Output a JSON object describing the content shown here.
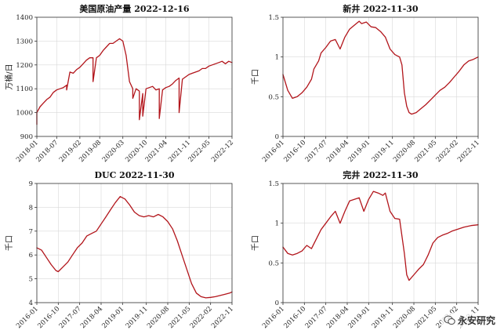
{
  "colors": {
    "series": "#b2151b",
    "grid": "#d9d9d9",
    "axis": "#333333"
  },
  "watermark": {
    "text": "永安研究",
    "icon": "wechat-icon"
  },
  "chart_data": [
    {
      "type": "line",
      "title": "美国原油产量 2022-12-16",
      "ylabel": "万桶/日",
      "xlabel": "",
      "ylim": [
        900,
        1400
      ],
      "yticks": [
        900,
        1000,
        1100,
        1200,
        1300,
        1400
      ],
      "xlim": [
        "2018-01",
        "2022-12"
      ],
      "xticks": [
        "2018-01",
        "2018-07",
        "2019-02",
        "2019-08",
        "2020-03",
        "2020-10",
        "2021-04",
        "2021-11",
        "2022-05",
        "2022-12"
      ],
      "grid": true,
      "series": [
        {
          "points": [
            [
              "2018-01",
              950
            ],
            [
              "2018-01",
              1000
            ],
            [
              "2018-02",
              1025
            ],
            [
              "2018-03",
              1040
            ],
            [
              "2018-04",
              1055
            ],
            [
              "2018-05",
              1065
            ],
            [
              "2018-06",
              1085
            ],
            [
              "2018-07",
              1095
            ],
            [
              "2018-08",
              1100
            ],
            [
              "2018-09",
              1105
            ],
            [
              "2018-10",
              1115
            ],
            [
              "2018-10",
              1095
            ],
            [
              "2018-11",
              1170
            ],
            [
              "2018-12",
              1165
            ],
            [
              "2019-01",
              1180
            ],
            [
              "2019-02",
              1190
            ],
            [
              "2019-03",
              1205
            ],
            [
              "2019-04",
              1220
            ],
            [
              "2019-05",
              1230
            ],
            [
              "2019-06",
              1230
            ],
            [
              "2019-06",
              1130
            ],
            [
              "2019-07",
              1230
            ],
            [
              "2019-08",
              1240
            ],
            [
              "2019-09",
              1260
            ],
            [
              "2019-10",
              1275
            ],
            [
              "2019-11",
              1290
            ],
            [
              "2019-12",
              1290
            ],
            [
              "2020-01",
              1300
            ],
            [
              "2020-02",
              1310
            ],
            [
              "2020-03",
              1300
            ],
            [
              "2020-04",
              1240
            ],
            [
              "2020-05",
              1130
            ],
            [
              "2020-06",
              1100
            ],
            [
              "2020-06",
              1060
            ],
            [
              "2020-07",
              1100
            ],
            [
              "2020-08",
              1090
            ],
            [
              "2020-08",
              970
            ],
            [
              "2020-09",
              1080
            ],
            [
              "2020-09",
              985
            ],
            [
              "2020-10",
              1100
            ],
            [
              "2020-11",
              1105
            ],
            [
              "2020-12",
              1110
            ],
            [
              "2021-01",
              1095
            ],
            [
              "2021-02",
              1100
            ],
            [
              "2021-02",
              975
            ],
            [
              "2021-03",
              1095
            ],
            [
              "2021-04",
              1105
            ],
            [
              "2021-05",
              1110
            ],
            [
              "2021-06",
              1120
            ],
            [
              "2021-07",
              1135
            ],
            [
              "2021-08",
              1145
            ],
            [
              "2021-08",
              1000
            ],
            [
              "2021-09",
              1140
            ],
            [
              "2021-10",
              1150
            ],
            [
              "2021-11",
              1160
            ],
            [
              "2021-12",
              1165
            ],
            [
              "2022-01",
              1170
            ],
            [
              "2022-02",
              1175
            ],
            [
              "2022-03",
              1185
            ],
            [
              "2022-04",
              1185
            ],
            [
              "2022-05",
              1195
            ],
            [
              "2022-06",
              1200
            ],
            [
              "2022-07",
              1205
            ],
            [
              "2022-08",
              1210
            ],
            [
              "2022-09",
              1215
            ],
            [
              "2022-10",
              1205
            ],
            [
              "2022-11",
              1215
            ],
            [
              "2022-12",
              1210
            ]
          ]
        }
      ]
    },
    {
      "type": "line",
      "title": "新井 2022-11-30",
      "ylabel": "千口",
      "xlabel": "",
      "ylim": [
        0,
        1.5
      ],
      "yticks": [
        0,
        0.5,
        1,
        1.5
      ],
      "xlim": [
        "2016-01",
        "2022-11"
      ],
      "xticks": [
        "2016-01",
        "2016-10",
        "2017-07",
        "2018-04",
        "2019-01",
        "2019-11",
        "2020-08",
        "2021-05",
        "2022-02",
        "2022-11"
      ],
      "grid": true,
      "series": [
        {
          "points": [
            [
              "2016-01",
              0.78
            ],
            [
              "2016-03",
              0.58
            ],
            [
              "2016-05",
              0.48
            ],
            [
              "2016-07",
              0.5
            ],
            [
              "2016-09",
              0.55
            ],
            [
              "2016-11",
              0.62
            ],
            [
              "2017-01",
              0.72
            ],
            [
              "2017-02",
              0.85
            ],
            [
              "2017-04",
              0.95
            ],
            [
              "2017-05",
              1.05
            ],
            [
              "2017-07",
              1.12
            ],
            [
              "2017-09",
              1.2
            ],
            [
              "2017-11",
              1.22
            ],
            [
              "2018-01",
              1.1
            ],
            [
              "2018-03",
              1.25
            ],
            [
              "2018-05",
              1.35
            ],
            [
              "2018-07",
              1.4
            ],
            [
              "2018-09",
              1.45
            ],
            [
              "2018-10",
              1.42
            ],
            [
              "2018-12",
              1.44
            ],
            [
              "2019-02",
              1.38
            ],
            [
              "2019-04",
              1.37
            ],
            [
              "2019-06",
              1.32
            ],
            [
              "2019-08",
              1.25
            ],
            [
              "2019-10",
              1.1
            ],
            [
              "2019-12",
              1.03
            ],
            [
              "2020-02",
              1.0
            ],
            [
              "2020-03",
              0.9
            ],
            [
              "2020-04",
              0.55
            ],
            [
              "2020-05",
              0.38
            ],
            [
              "2020-06",
              0.3
            ],
            [
              "2020-07",
              0.28
            ],
            [
              "2020-09",
              0.3
            ],
            [
              "2020-11",
              0.35
            ],
            [
              "2021-01",
              0.4
            ],
            [
              "2021-03",
              0.46
            ],
            [
              "2021-05",
              0.52
            ],
            [
              "2021-07",
              0.58
            ],
            [
              "2021-09",
              0.62
            ],
            [
              "2021-11",
              0.68
            ],
            [
              "2022-01",
              0.75
            ],
            [
              "2022-03",
              0.82
            ],
            [
              "2022-05",
              0.9
            ],
            [
              "2022-07",
              0.95
            ],
            [
              "2022-09",
              0.97
            ],
            [
              "2022-11",
              1.0
            ]
          ]
        }
      ]
    },
    {
      "type": "line",
      "title": "DUC 2022-11-30",
      "ylabel": "千口",
      "xlabel": "",
      "ylim": [
        4,
        9
      ],
      "yticks": [
        4,
        5,
        6,
        7,
        8,
        9
      ],
      "xlim": [
        "2016-01",
        "2022-11"
      ],
      "xticks": [
        "2016-01",
        "2016-10",
        "2017-07",
        "2018-04",
        "2019-01",
        "2019-11",
        "2020-08",
        "2021-05",
        "2022-02",
        "2022-11"
      ],
      "grid": true,
      "series": [
        {
          "points": [
            [
              "2016-01",
              6.3
            ],
            [
              "2016-03",
              6.2
            ],
            [
              "2016-05",
              5.9
            ],
            [
              "2016-07",
              5.6
            ],
            [
              "2016-09",
              5.35
            ],
            [
              "2016-10",
              5.3
            ],
            [
              "2016-12",
              5.5
            ],
            [
              "2017-02",
              5.7
            ],
            [
              "2017-04",
              6.0
            ],
            [
              "2017-06",
              6.3
            ],
            [
              "2017-08",
              6.5
            ],
            [
              "2017-10",
              6.8
            ],
            [
              "2017-12",
              6.9
            ],
            [
              "2018-02",
              7.0
            ],
            [
              "2018-04",
              7.3
            ],
            [
              "2018-06",
              7.6
            ],
            [
              "2018-08",
              7.9
            ],
            [
              "2018-10",
              8.2
            ],
            [
              "2018-12",
              8.45
            ],
            [
              "2019-02",
              8.35
            ],
            [
              "2019-04",
              8.1
            ],
            [
              "2019-06",
              7.8
            ],
            [
              "2019-08",
              7.65
            ],
            [
              "2019-10",
              7.6
            ],
            [
              "2019-12",
              7.65
            ],
            [
              "2020-02",
              7.6
            ],
            [
              "2020-04",
              7.7
            ],
            [
              "2020-06",
              7.6
            ],
            [
              "2020-08",
              7.4
            ],
            [
              "2020-10",
              7.1
            ],
            [
              "2020-12",
              6.6
            ],
            [
              "2021-02",
              6.0
            ],
            [
              "2021-04",
              5.4
            ],
            [
              "2021-06",
              4.8
            ],
            [
              "2021-08",
              4.4
            ],
            [
              "2021-10",
              4.25
            ],
            [
              "2021-12",
              4.2
            ],
            [
              "2022-02",
              4.22
            ],
            [
              "2022-04",
              4.25
            ],
            [
              "2022-06",
              4.3
            ],
            [
              "2022-08",
              4.35
            ],
            [
              "2022-10",
              4.4
            ],
            [
              "2022-11",
              4.45
            ]
          ]
        }
      ]
    },
    {
      "type": "line",
      "title": "完井 2022-11-30",
      "ylabel": "千口",
      "xlabel": "",
      "ylim": [
        0,
        1.5
      ],
      "yticks": [
        0,
        0.5,
        1,
        1.5
      ],
      "xlim": [
        "2016-01",
        "2022-11"
      ],
      "xticks": [
        "2016-01",
        "2016-10",
        "2017-07",
        "2018-04",
        "2019-01",
        "2019-11",
        "2020-08",
        "2021-05",
        "2022-02",
        "2022-11"
      ],
      "grid": true,
      "series": [
        {
          "points": [
            [
              "2016-01",
              0.7
            ],
            [
              "2016-03",
              0.62
            ],
            [
              "2016-05",
              0.6
            ],
            [
              "2016-07",
              0.62
            ],
            [
              "2016-09",
              0.65
            ],
            [
              "2016-11",
              0.72
            ],
            [
              "2017-01",
              0.68
            ],
            [
              "2017-03",
              0.8
            ],
            [
              "2017-05",
              0.92
            ],
            [
              "2017-07",
              1.0
            ],
            [
              "2017-09",
              1.08
            ],
            [
              "2017-11",
              1.15
            ],
            [
              "2018-01",
              1.0
            ],
            [
              "2018-03",
              1.15
            ],
            [
              "2018-05",
              1.28
            ],
            [
              "2018-07",
              1.3
            ],
            [
              "2018-09",
              1.32
            ],
            [
              "2018-11",
              1.15
            ],
            [
              "2019-01",
              1.3
            ],
            [
              "2019-03",
              1.4
            ],
            [
              "2019-05",
              1.38
            ],
            [
              "2019-07",
              1.35
            ],
            [
              "2019-08",
              1.38
            ],
            [
              "2019-10",
              1.15
            ],
            [
              "2019-12",
              1.06
            ],
            [
              "2020-02",
              1.05
            ],
            [
              "2020-04",
              0.62
            ],
            [
              "2020-05",
              0.35
            ],
            [
              "2020-06",
              0.28
            ],
            [
              "2020-08",
              0.35
            ],
            [
              "2020-10",
              0.42
            ],
            [
              "2020-12",
              0.48
            ],
            [
              "2021-02",
              0.6
            ],
            [
              "2021-04",
              0.75
            ],
            [
              "2021-06",
              0.82
            ],
            [
              "2021-08",
              0.85
            ],
            [
              "2021-10",
              0.87
            ],
            [
              "2021-12",
              0.9
            ],
            [
              "2022-02",
              0.92
            ],
            [
              "2022-05",
              0.95
            ],
            [
              "2022-08",
              0.97
            ],
            [
              "2022-11",
              0.98
            ]
          ]
        }
      ]
    }
  ]
}
